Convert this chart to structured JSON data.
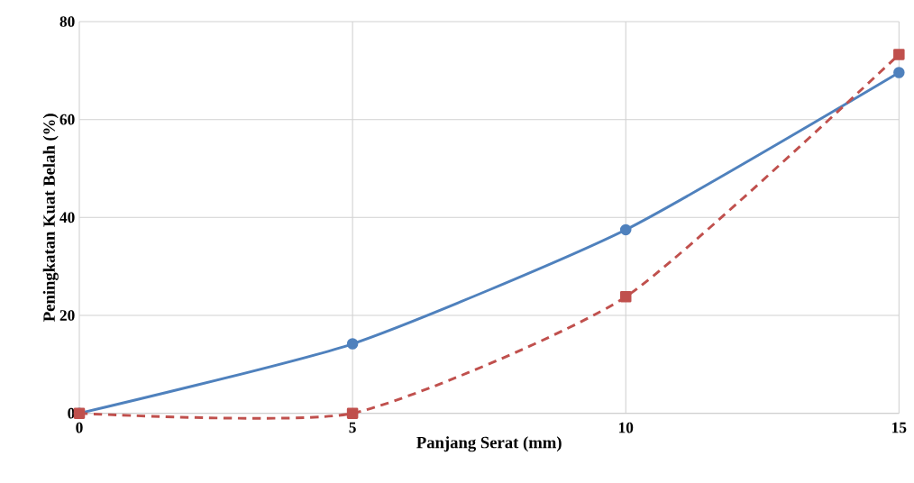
{
  "chart_data": {
    "type": "line",
    "xlabel": "Panjang Serat (mm)",
    "ylabel": "Peningkatan Kuat Belah (%)",
    "x": [
      0,
      5,
      10,
      15
    ],
    "series": [
      {
        "color": "#4f81bd",
        "values": [
          0,
          14.2,
          37.5,
          69.6
        ],
        "marker": "circle",
        "line_style": "solid"
      },
      {
        "color": "#c0504d",
        "values": [
          0,
          0,
          23.8,
          73.3
        ],
        "marker": "square",
        "line_style": "dashed"
      }
    ],
    "xlim": [
      0,
      15
    ],
    "ylim": [
      0,
      80
    ],
    "xticks": [
      0,
      5,
      10,
      15
    ],
    "yticks": [
      0,
      20,
      40,
      60,
      80
    ],
    "grid": true
  }
}
